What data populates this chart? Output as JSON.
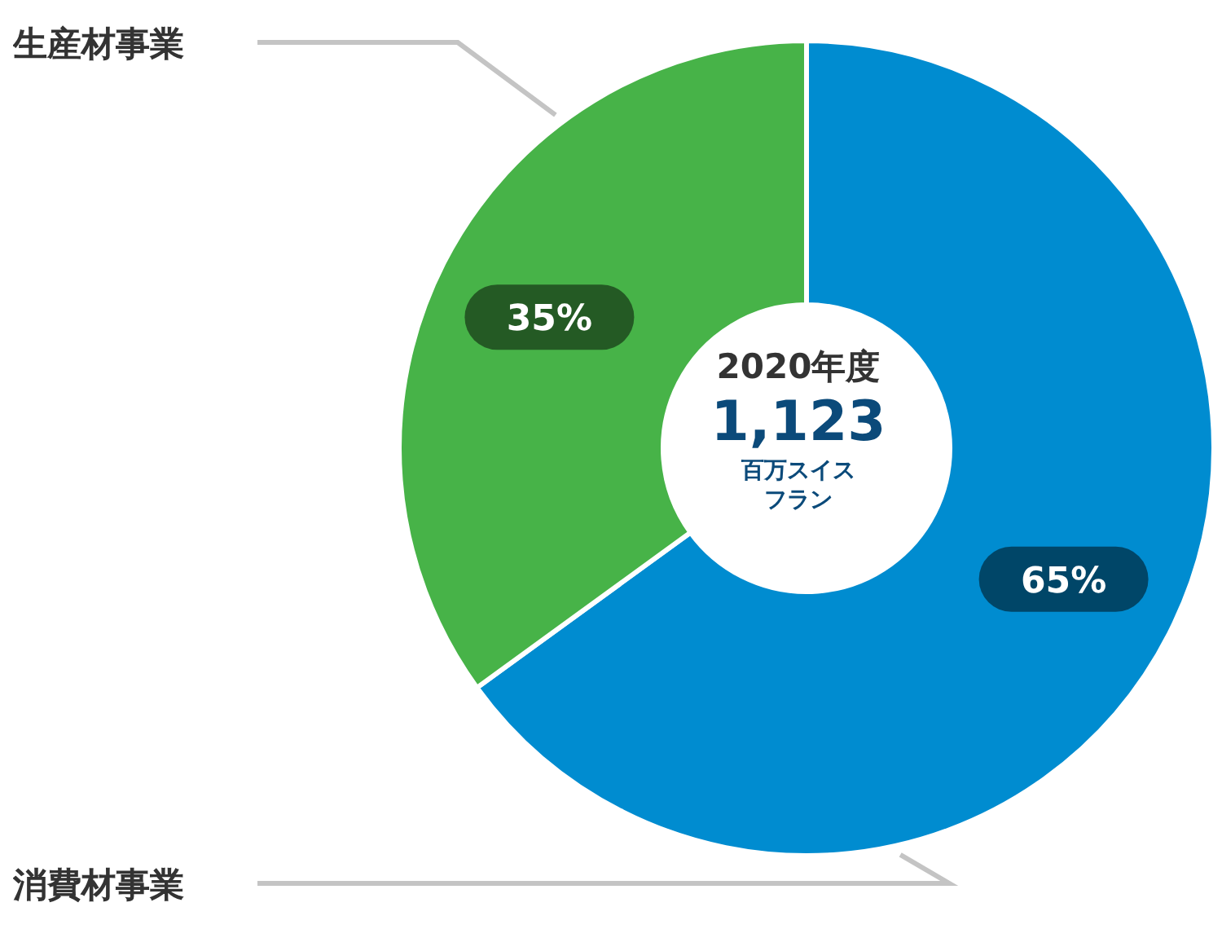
{
  "chart_data": {
    "type": "donut",
    "categories": [
      "消費材事業",
      "生産材事業"
    ],
    "values": [
      65,
      35
    ],
    "colors": [
      "#008cd0",
      "#47b348"
    ],
    "value_labels": [
      "65%",
      "35%"
    ],
    "annotations": [
      "2020年度",
      "1,123",
      "百万スイスフラン"
    ]
  }
}
